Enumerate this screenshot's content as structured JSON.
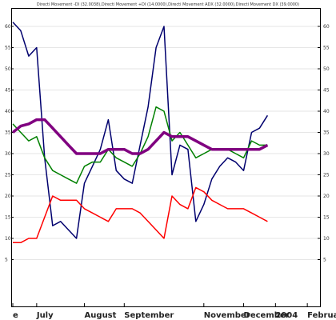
{
  "legend": {
    "text": "Directi Movement -DI (32.0038),Directi Movement +DI (14.0000),Directi Movement ADX (32.0000),Directi Movement DX (39.0000)"
  },
  "chart_data": {
    "type": "line",
    "title": "",
    "xlabel": "",
    "ylabel": "",
    "ylim": [
      4,
      63
    ],
    "yticks": [
      5,
      10,
      15,
      20,
      25,
      30,
      35,
      40,
      45,
      50,
      55,
      60
    ],
    "x_count": 38,
    "xtick_labels": [
      {
        "label": "e",
        "index": 0
      },
      {
        "label": "July",
        "index": 3
      },
      {
        "label": "August",
        "index": 9
      },
      {
        "label": "September",
        "index": 14
      },
      {
        "label": "November",
        "index": 24
      },
      {
        "label": "December",
        "index": 29
      },
      {
        "label": "2004",
        "index": 33
      },
      {
        "label": "February",
        "index": 37
      }
    ],
    "series": [
      {
        "color": "#00006e",
        "values": [
          61,
          59,
          53,
          55,
          29,
          13,
          14,
          12,
          10,
          23,
          27,
          31,
          38,
          26,
          24,
          23,
          32,
          41,
          55,
          60,
          25,
          32,
          31,
          14,
          18,
          24,
          27,
          29,
          28,
          26,
          35,
          36,
          39
        ]
      },
      {
        "color": "#008000",
        "values": [
          37,
          35,
          33,
          34,
          29,
          26,
          25,
          24,
          23,
          27,
          28,
          28,
          31,
          29,
          28,
          27,
          30,
          34,
          41,
          40,
          33,
          35,
          32,
          29,
          30,
          31,
          31,
          31,
          30,
          29,
          33,
          32,
          32
        ]
      },
      {
        "color": "#ff0000",
        "values": [
          9,
          9,
          10,
          10,
          15,
          20,
          19,
          19,
          19,
          17,
          16,
          15,
          14,
          17,
          17,
          17,
          16,
          14,
          12,
          10,
          20,
          18,
          17,
          22,
          21,
          19,
          18,
          17,
          17,
          17,
          16,
          15,
          14
        ]
      },
      {
        "color": "#800080",
        "values": [
          35,
          36.5,
          37,
          38,
          38,
          36,
          34,
          32,
          30,
          30,
          30,
          30,
          31,
          31,
          31,
          30,
          30,
          31,
          33,
          35,
          34,
          34,
          34,
          33,
          32,
          31,
          31,
          31,
          31,
          31,
          31,
          31,
          32
        ]
      }
    ]
  }
}
